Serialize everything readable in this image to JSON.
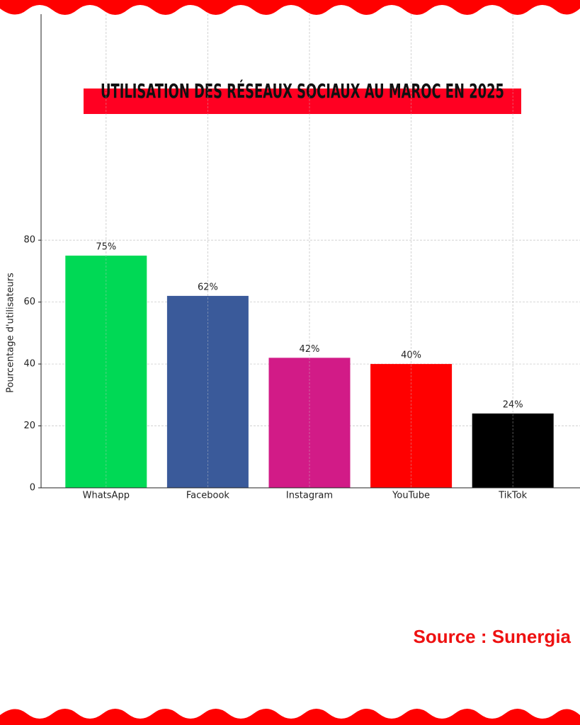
{
  "chart_data": {
    "type": "bar",
    "title": "UTILISATION DES RÉSEAUX SOCIAUX AU MAROC EN 2025",
    "ylabel": "Pourcentage d'utilisateurs",
    "categories": [
      "WhatsApp",
      "Facebook",
      "Instagram",
      "YouTube",
      "TikTok"
    ],
    "values": [
      75,
      62,
      42,
      40,
      24
    ],
    "value_labels": [
      "75%",
      "62%",
      "42%",
      "40%",
      "24%"
    ],
    "colors": [
      "#00d955",
      "#3a5a9a",
      "#d21b87",
      "#ff0000",
      "#000000"
    ],
    "ylim": [
      0,
      153
    ],
    "yticks": [
      0,
      20,
      40,
      60,
      80
    ],
    "grid": true,
    "source": "Source : Sunergia"
  }
}
